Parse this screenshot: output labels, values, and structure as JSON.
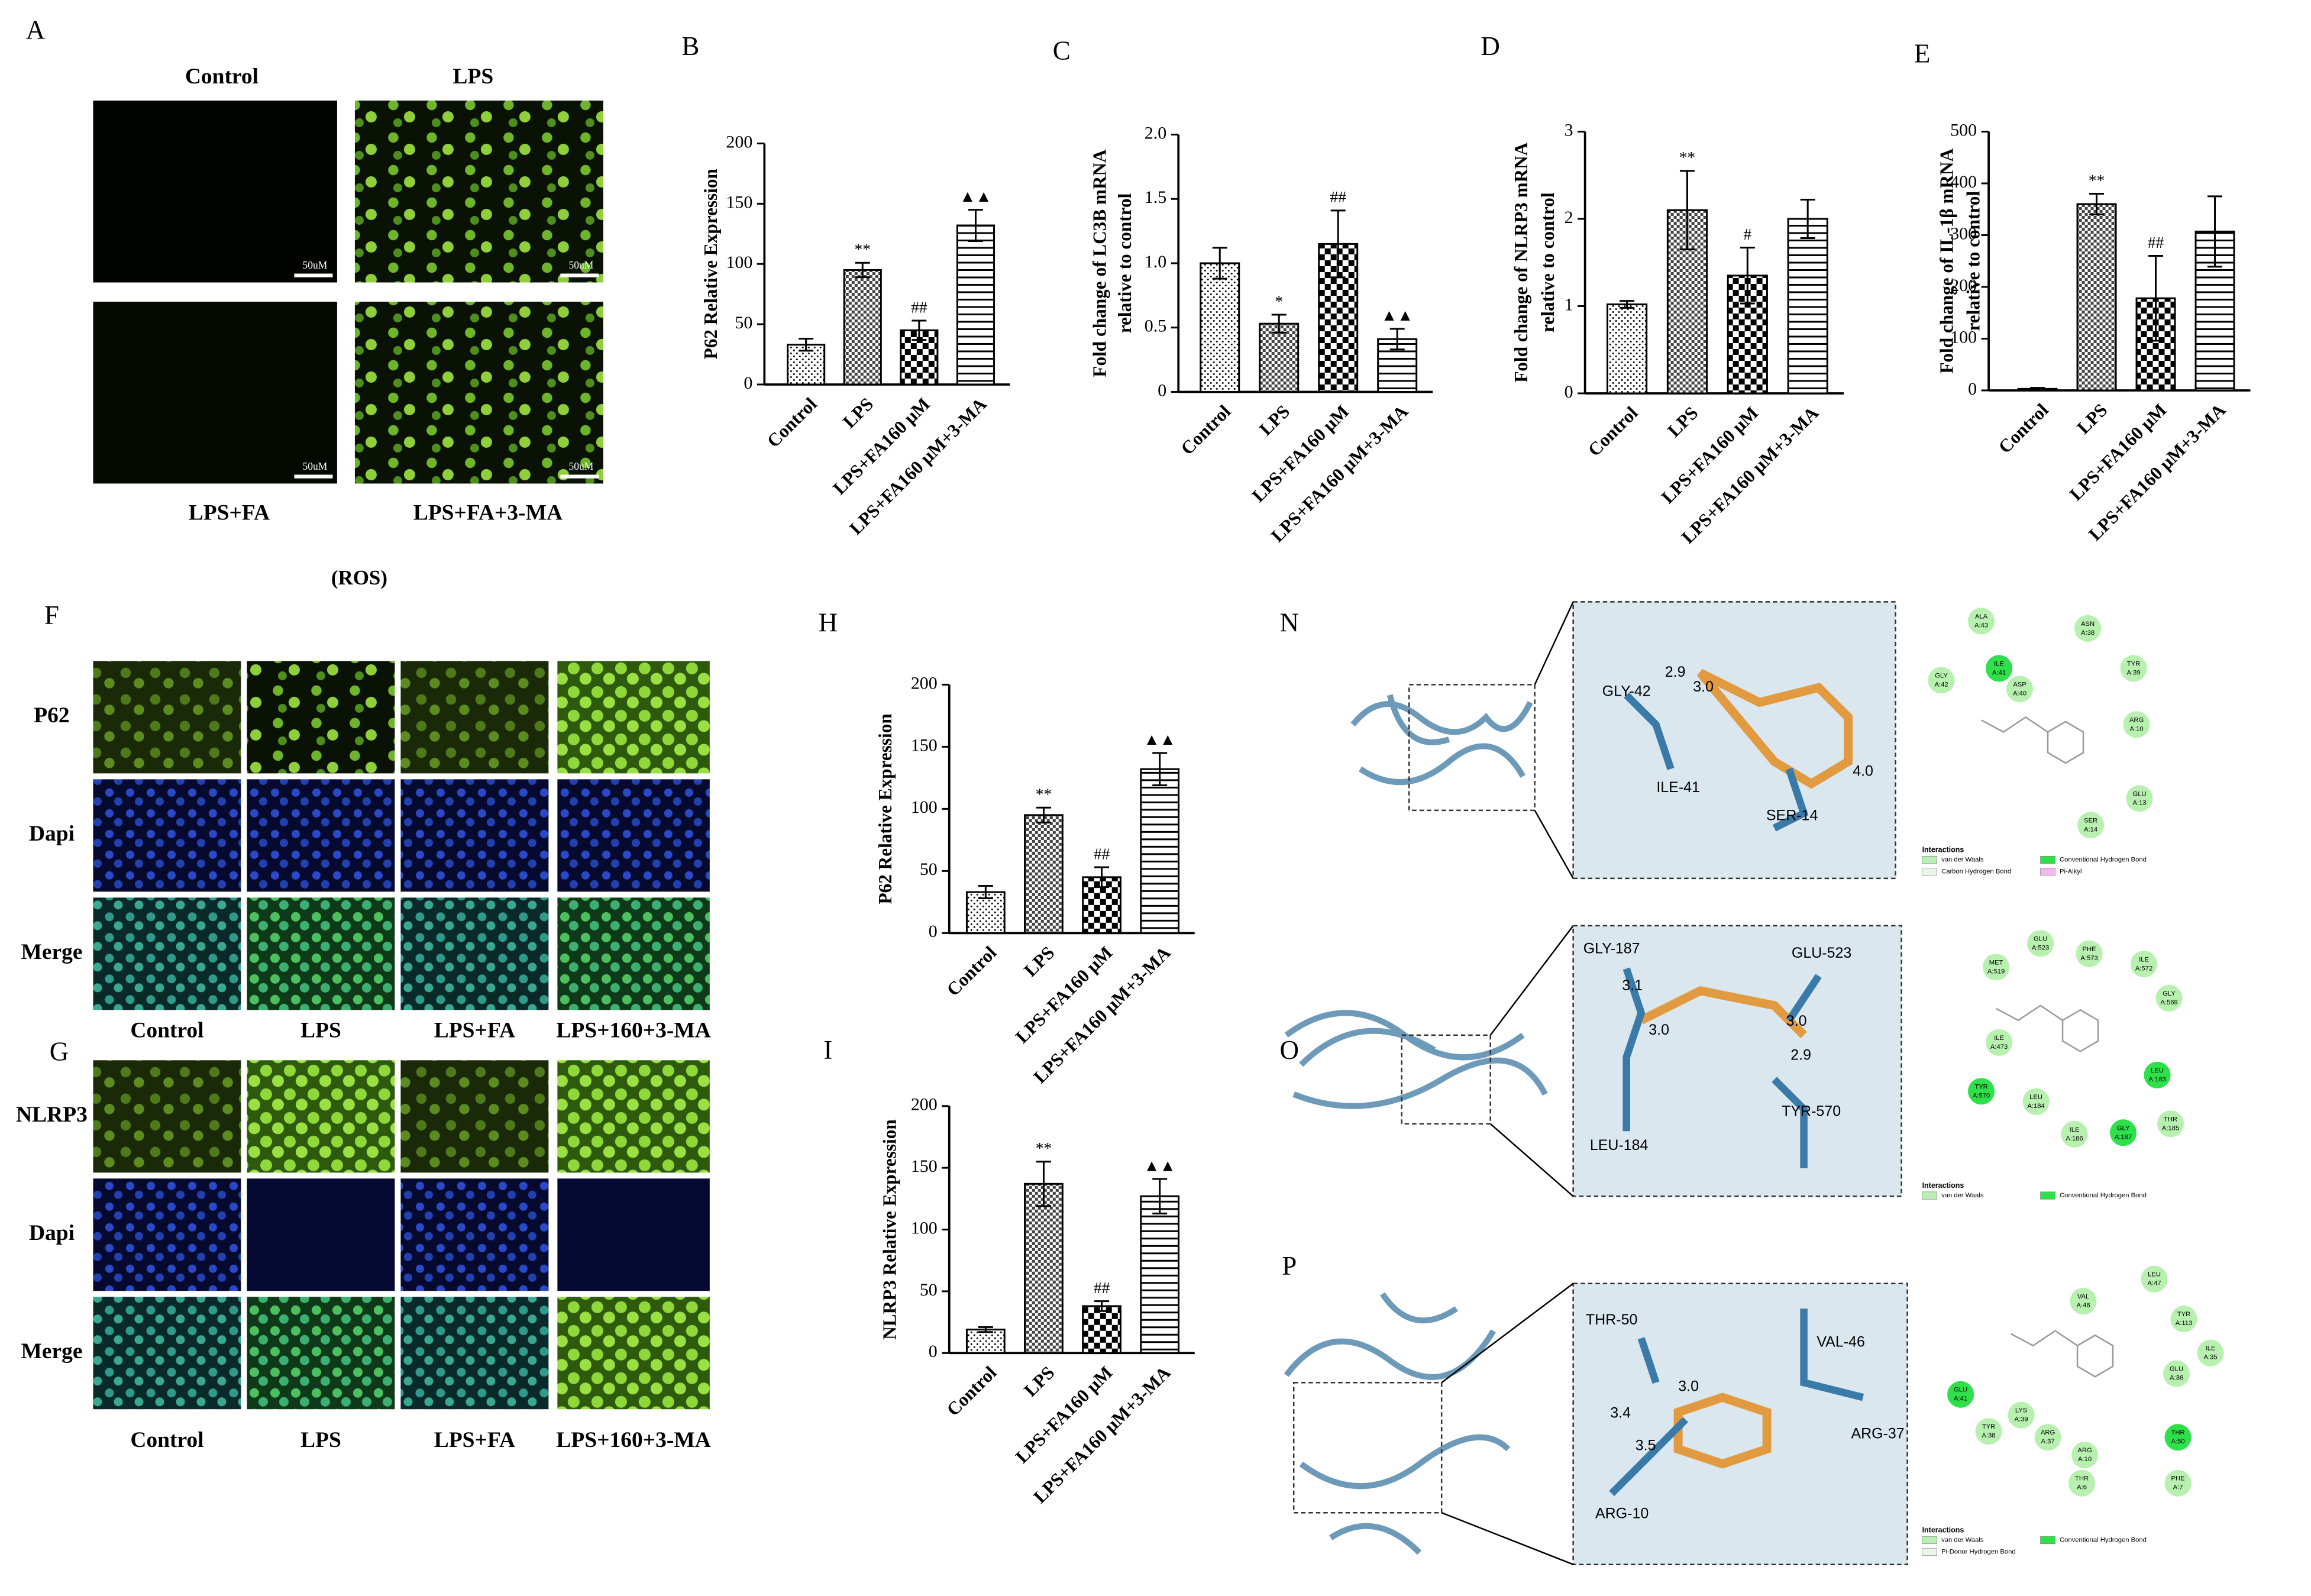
{
  "panel_labels": [
    "A",
    "B",
    "C",
    "D",
    "E",
    "F",
    "G",
    "H",
    "I",
    "N",
    "O",
    "P"
  ],
  "ros_panel": {
    "columns": [
      "Control",
      "LPS",
      "LPS+FA",
      "LPS+FA+3-MA"
    ],
    "caption": "(ROS)",
    "scale_bar": "50uM"
  },
  "if_panels": [
    {
      "rows": [
        "P62",
        "Dapi",
        "Merge"
      ],
      "columns": [
        "Control",
        "LPS",
        "LPS+FA",
        "LPS+160+3-MA"
      ]
    },
    {
      "rows": [
        "NLRP3",
        "Dapi",
        "Merge"
      ],
      "columns": [
        "Control",
        "LPS",
        "LPS+FA",
        "LPS+160+3-MA"
      ]
    }
  ],
  "docking": [
    {
      "residues": [
        "GLY-42",
        "ILE-41",
        "SER-14"
      ],
      "distances": [
        "2.9",
        "3.0",
        "4.0"
      ],
      "interactions": [
        [
          "ALA",
          "A:43"
        ],
        [
          "ASN",
          "A:38"
        ],
        [
          "ILE",
          "A:41"
        ],
        [
          "ASP",
          "A:40"
        ],
        [
          "TYR",
          "A:39"
        ],
        [
          "GLY",
          "A:42"
        ],
        [
          "ARG",
          "A:10"
        ],
        [
          "GLU",
          "A:13"
        ],
        [
          "SER",
          "A:14"
        ]
      ],
      "legend": [
        "Interactions",
        "van der Waals",
        "Conventional Hydrogen Bond",
        "Carbon Hydrogen Bond",
        "Pi-Alkyl"
      ]
    },
    {
      "residues": [
        "GLY-187",
        "GLU-523",
        "TYR-570",
        "LEU-184"
      ],
      "distances": [
        "3.1",
        "3.0",
        "3.0",
        "2.9"
      ],
      "interactions": [
        [
          "GLU",
          "A:523"
        ],
        [
          "PHE",
          "A:573"
        ],
        [
          "MET",
          "A:519"
        ],
        [
          "ILE",
          "A:572"
        ],
        [
          "GLY",
          "A:569"
        ],
        [
          "ILE",
          "A:473"
        ],
        [
          "LEU",
          "A:183"
        ],
        [
          "TYR",
          "A:570"
        ],
        [
          "LEU",
          "A:184"
        ],
        [
          "THR",
          "A:185"
        ],
        [
          "ILE",
          "A:186"
        ],
        [
          "GLY",
          "A:187"
        ]
      ],
      "legend": [
        "Interactions",
        "van der Waals",
        "Conventional Hydrogen Bond"
      ]
    },
    {
      "residues": [
        "THR-50",
        "VAL-46",
        "ARG-37",
        "ARG-10"
      ],
      "distances": [
        "3.0",
        "3.4",
        "3.5"
      ],
      "interactions": [
        [
          "LEU",
          "A:47"
        ],
        [
          "VAL",
          "A:46"
        ],
        [
          "TYR",
          "A:113"
        ],
        [
          "ILE",
          "A:35"
        ],
        [
          "GLU",
          "A:36"
        ],
        [
          "GLU",
          "A:41"
        ],
        [
          "LYS",
          "A:39"
        ],
        [
          "TYR",
          "A:38"
        ],
        [
          "ARG",
          "A:37"
        ],
        [
          "THR",
          "A:50"
        ],
        [
          "ARG",
          "A:10"
        ],
        [
          "THR",
          "A:6"
        ],
        [
          "PHE",
          "A:7"
        ]
      ],
      "legend": [
        "Interactions",
        "van der Waals",
        "Conventional Hydrogen Bond",
        "Pi-Donor Hydrogen Bond"
      ]
    }
  ],
  "chart_data": [
    {
      "type": "bar",
      "ylabel": [
        "P62 Relative Expression"
      ],
      "categories": [
        "Control",
        "LPS",
        "LPS+FA160 μM",
        "LPS+FA160 μM+3-MA"
      ],
      "values": [
        33,
        95,
        45,
        132
      ],
      "errors": [
        5,
        6,
        8,
        13
      ],
      "annotations": [
        null,
        "**",
        "##",
        "▲▲"
      ],
      "patterns": [
        "dots",
        "dense-check",
        "check",
        "hlines"
      ],
      "ylim": [
        0,
        200
      ],
      "yticks": [
        0,
        50,
        100,
        150,
        200
      ]
    },
    {
      "type": "bar",
      "ylabel": [
        "Fold change of LC3B mRNA",
        "relative to control"
      ],
      "categories": [
        "Control",
        "LPS",
        "LPS+FA160 μM",
        "LPS+FA160 μM+3-MA"
      ],
      "values": [
        1.0,
        0.53,
        1.15,
        0.41
      ],
      "errors": [
        0.12,
        0.07,
        0.26,
        0.08
      ],
      "annotations": [
        null,
        "*",
        "##",
        "▲▲"
      ],
      "patterns": [
        "dots",
        "dense-check",
        "check",
        "hlines"
      ],
      "ylim": [
        0,
        2
      ],
      "yticks": [
        0,
        0.5,
        {
          "value": 1,
          "label": "1.0"
        },
        1.5,
        {
          "value": 2,
          "label": "2.0"
        }
      ]
    },
    {
      "type": "bar",
      "ylabel": [
        "Fold change of NLRP3 mRNA",
        "relative to control"
      ],
      "categories": [
        "Control",
        "LPS",
        "LPS+FA160 μM",
        "LPS+FA160 μM+3-MA"
      ],
      "values": [
        1.02,
        2.1,
        1.35,
        2.0
      ],
      "errors": [
        0.04,
        0.45,
        0.32,
        0.22
      ],
      "annotations": [
        null,
        "**",
        "#",
        null
      ],
      "patterns": [
        "dots",
        "dense-check",
        "check",
        "hlines"
      ],
      "ylim": [
        0,
        3
      ],
      "yticks": [
        0,
        1,
        2,
        3
      ]
    },
    {
      "type": "bar",
      "ylabel": [
        "Fold change of IL-1β mRNA",
        "relative to control"
      ],
      "categories": [
        "Control",
        "LPS",
        "LPS+FA160 μM",
        "LPS+FA160 μM+3-MA"
      ],
      "values": [
        3,
        360,
        178,
        307
      ],
      "errors": [
        2,
        20,
        82,
        68
      ],
      "annotations": [
        null,
        "**",
        "##",
        null
      ],
      "patterns": [
        "dots",
        "dense-check",
        "check",
        "hlines"
      ],
      "ylim": [
        0,
        500
      ],
      "yticks": [
        0,
        100,
        200,
        300,
        400,
        500
      ]
    },
    {
      "type": "bar",
      "ylabel": [
        "P62 Relative Expression"
      ],
      "categories": [
        "Control",
        "LPS",
        "LPS+FA160 μM",
        "LPS+FA160 μM+3-MA"
      ],
      "values": [
        33,
        95,
        45,
        132
      ],
      "errors": [
        5,
        6,
        8,
        13
      ],
      "annotations": [
        null,
        "**",
        "##",
        "▲▲"
      ],
      "patterns": [
        "dots",
        "dense-check",
        "check",
        "hlines"
      ],
      "ylim": [
        0,
        200
      ],
      "yticks": [
        0,
        50,
        100,
        150,
        200
      ]
    },
    {
      "type": "bar",
      "ylabel": [
        "NLRP3 Relative Expression"
      ],
      "categories": [
        "Control",
        "LPS",
        "LPS+FA160 μM",
        "LPS+FA160 μM+3-MA"
      ],
      "values": [
        19,
        137,
        38,
        127
      ],
      "errors": [
        2,
        18,
        4,
        14
      ],
      "annotations": [
        null,
        "**",
        "##",
        "▲▲"
      ],
      "patterns": [
        "dots",
        "dense-check",
        "check",
        "hlines"
      ],
      "ylim": [
        0,
        200
      ],
      "yticks": [
        0,
        50,
        100,
        150,
        200
      ]
    }
  ]
}
